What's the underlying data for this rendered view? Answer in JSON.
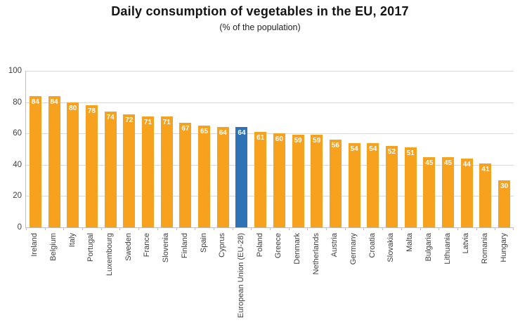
{
  "chart_data": {
    "type": "bar",
    "title": "Daily consumption of vegetables in the EU, 2017",
    "subtitle": "(% of the population)",
    "categories": [
      "Ireland",
      "Belgium",
      "Italy",
      "Portugal",
      "Luxembourg",
      "Sweden",
      "France",
      "Slovenia",
      "Finland",
      "Spain",
      "Cyprus",
      "European Union (EU-28)",
      "Poland",
      "Greece",
      "Denmark",
      "Netherlands",
      "Austria",
      "Germany",
      "Croatia",
      "Slovakia",
      "Malta",
      "Bulgaria",
      "Lithuania",
      "Latvia",
      "Romania",
      "Hungary"
    ],
    "values": [
      84,
      84,
      80,
      78,
      74,
      72,
      71,
      71,
      67,
      65,
      64,
      64,
      61,
      60,
      59,
      59,
      56,
      54,
      54,
      52,
      51,
      45,
      45,
      44,
      41,
      30
    ],
    "highlight_category": "European Union (EU-28)",
    "highlight_index": 11,
    "xlabel": "",
    "ylabel": "",
    "ylim": [
      0,
      100
    ],
    "yticks": [
      0,
      20,
      40,
      60,
      80,
      100
    ],
    "grid": "horizontal",
    "legend": "none",
    "value_labels": "inside-top, white bold",
    "bar_color": "#F7A21E",
    "highlight_color": "#2E73B5",
    "gridline_color": "#D9D9D9",
    "axis_color": "#BFBFBF",
    "tick_label_color": "#404040"
  }
}
